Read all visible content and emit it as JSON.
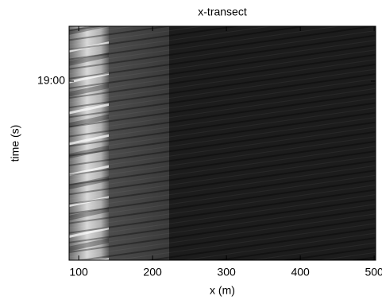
{
  "chart_data": {
    "type": "image",
    "title": "x-transect",
    "x_label": "x (m)",
    "y_label": "time (s)",
    "xlim": [
      87,
      502
    ],
    "xticks": [
      100,
      200,
      300,
      400,
      500
    ],
    "yticks": [
      "19:00"
    ]
  }
}
